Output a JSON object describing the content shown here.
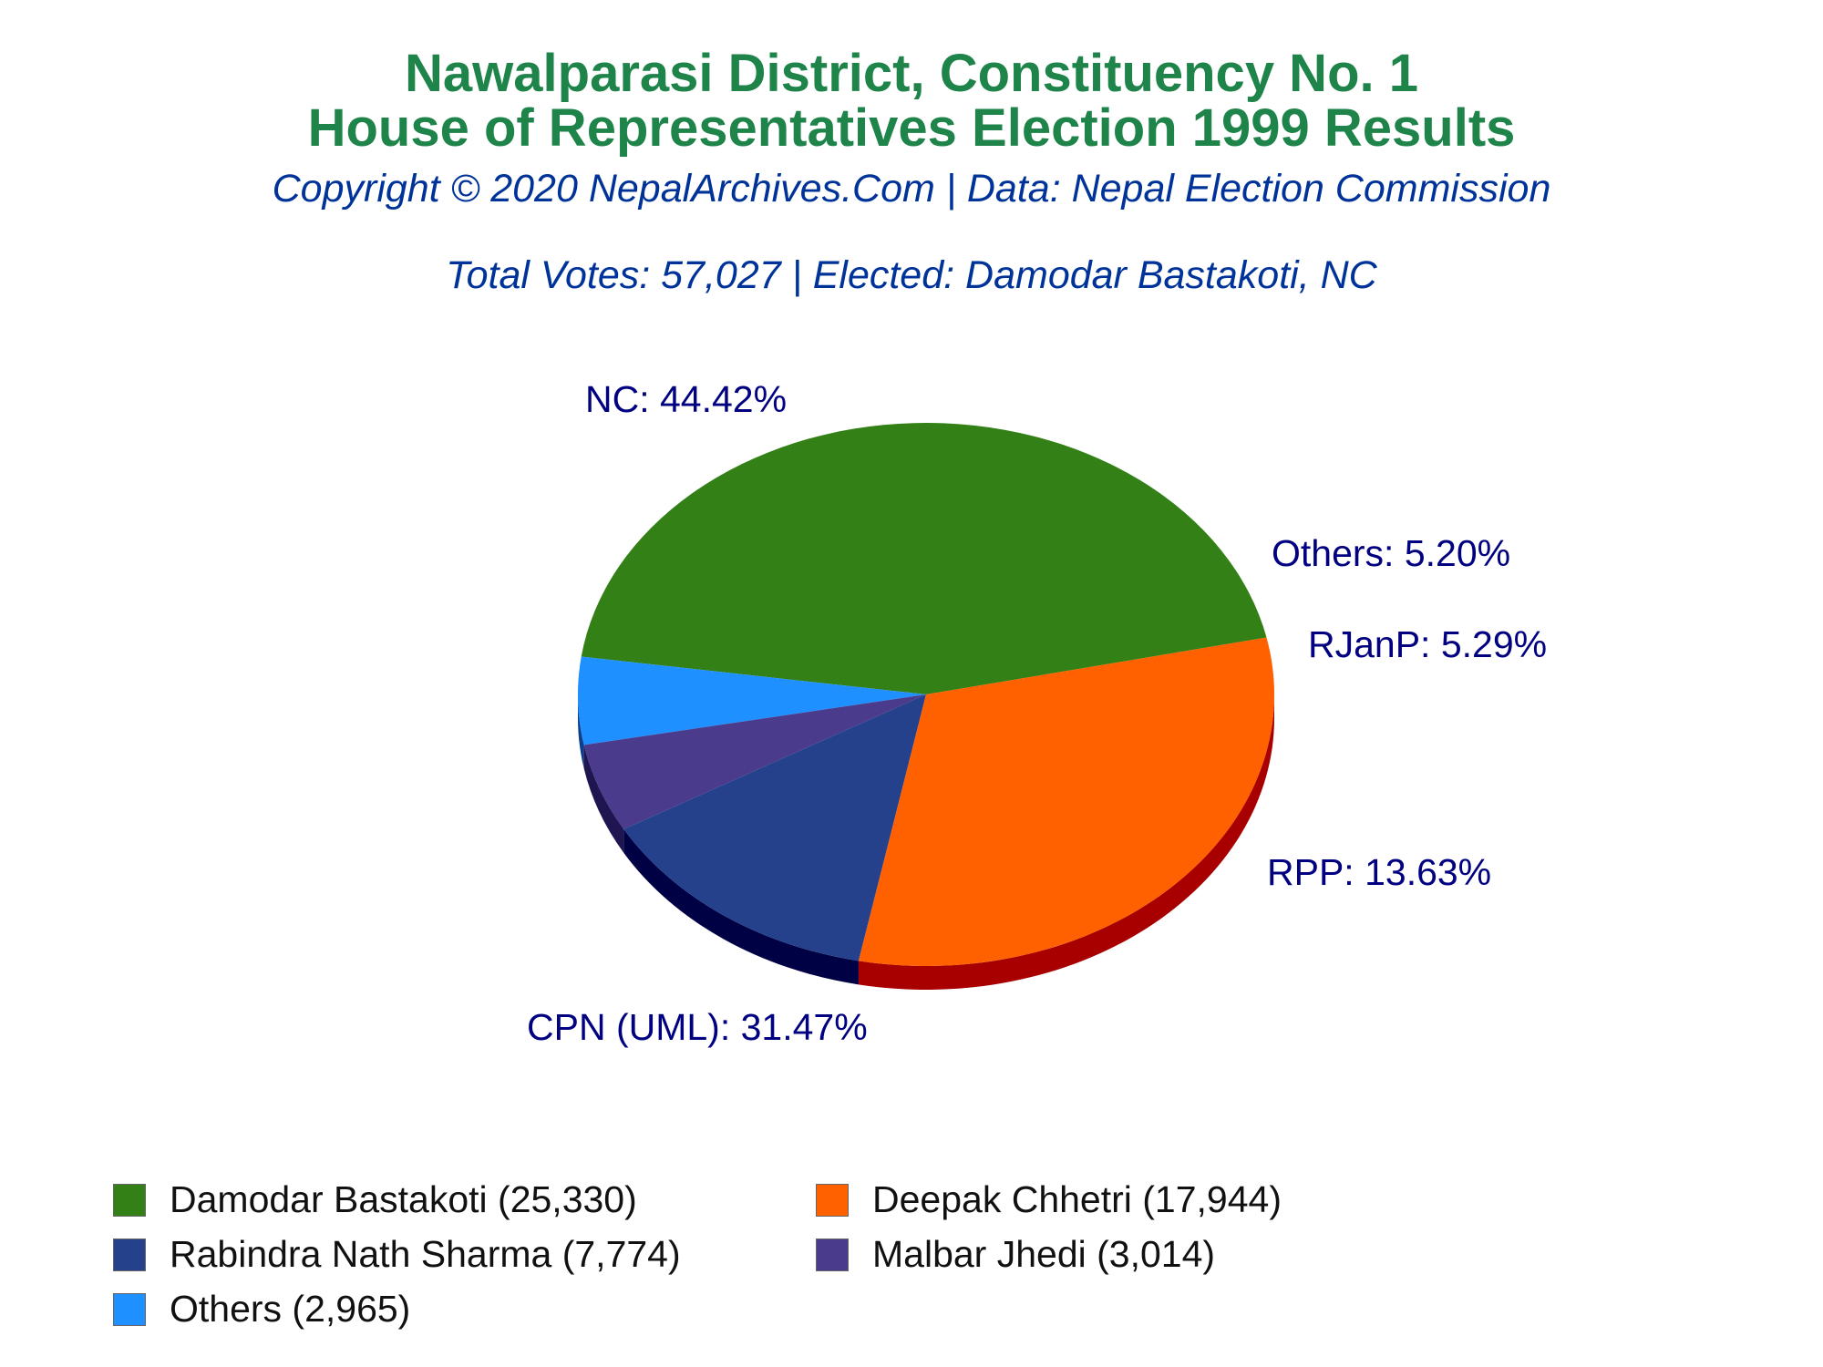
{
  "header": {
    "title_line1": "Nawalparasi District, Constituency No. 1",
    "title_line2": "House of Representatives Election 1999 Results",
    "copyright": "Copyright © 2020 NepalArchives.Com | Data: Nepal Election Commission",
    "summary": "Total Votes: 57,027 | Elected: Damodar Bastakoti, NC"
  },
  "colors": {
    "title": "#1e8449",
    "subtitle": "#003399",
    "slice_label": "#000080"
  },
  "chart_data": {
    "type": "pie",
    "style": "3d",
    "legend_position": "bottom",
    "slices": [
      {
        "party": "NC",
        "candidate": "Damodar Bastakoti",
        "votes": 25330,
        "percent": 44.42,
        "label": "NC: 44.42%",
        "legend_label": "Damodar Bastakoti (25,330)",
        "color": "#338016",
        "side_color": "#1b4d0a"
      },
      {
        "party": "Others",
        "candidate": "Others",
        "votes": 2965,
        "percent": 5.2,
        "label": "Others: 5.20%",
        "legend_label": "Others (2,965)",
        "color": "#1e90ff",
        "side_color": "#0b3f8c"
      },
      {
        "party": "RJanP",
        "candidate": "Malbar Jhedi",
        "votes": 3014,
        "percent": 5.29,
        "label": "RJanP: 5.29%",
        "legend_label": "Malbar Jhedi (3,014)",
        "color": "#4b3b8c",
        "side_color": "#1f1550"
      },
      {
        "party": "RPP",
        "candidate": "Rabindra Nath Sharma",
        "votes": 7774,
        "percent": 13.63,
        "label": "RPP: 13.63%",
        "legend_label": "Rabindra Nath Sharma (7,774)",
        "color": "#25418c",
        "side_color": "#000044"
      },
      {
        "party": "CPN (UML)",
        "candidate": "Deepak Chhetri",
        "votes": 17944,
        "percent": 31.47,
        "label": "CPN (UML): 31.47%",
        "legend_label": "Deepak Chhetri (17,944)",
        "color": "#ff6000",
        "side_color": "#a80000"
      }
    ],
    "legend_order": [
      "Damodar Bastakoti",
      "Deepak Chhetri",
      "Rabindra Nath Sharma",
      "Malbar Jhedi",
      "Others"
    ]
  }
}
